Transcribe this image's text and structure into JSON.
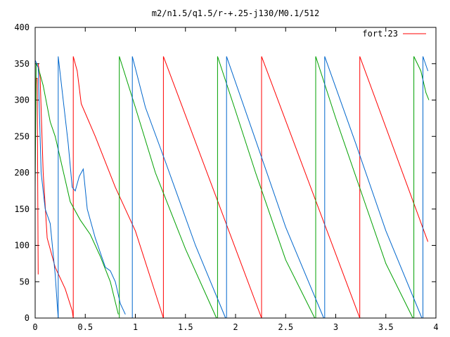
{
  "chart_data": {
    "type": "line",
    "title": "m2/n1.5/q1.5/r-+.25-j130/M0.1/512",
    "xlabel": "",
    "ylabel": "",
    "xlim": [
      0,
      4
    ],
    "ylim": [
      0,
      400
    ],
    "x_ticks": [
      "0",
      "0.5",
      "1",
      "1.5",
      "2",
      "2.5",
      "3",
      "3.5",
      "4"
    ],
    "y_ticks": [
      "0",
      "50",
      "100",
      "150",
      "200",
      "250",
      "300",
      "350",
      "400"
    ],
    "grid": false,
    "legend_position": "top-right",
    "legend_entries": [
      "fort.23"
    ],
    "series": [
      {
        "name": "fort.23",
        "color": "#ff0000",
        "segments": [
          [
            [
              0.0,
              300
            ],
            [
              0.01,
              330
            ],
            [
              0.02,
              330
            ],
            [
              0.03,
              60
            ]
          ],
          [
            [
              0.03,
              350
            ],
            [
              0.05,
              330
            ],
            [
              0.08,
              200
            ],
            [
              0.12,
              110
            ],
            [
              0.2,
              70
            ],
            [
              0.3,
              40
            ],
            [
              0.37,
              10
            ],
            [
              0.38,
              0
            ]
          ],
          [
            [
              0.38,
              0
            ],
            [
              0.38,
              360
            ],
            [
              0.42,
              340
            ],
            [
              0.46,
              295
            ],
            [
              0.6,
              250
            ],
            [
              0.8,
              180
            ],
            [
              1.0,
              120
            ],
            [
              1.28,
              0
            ]
          ],
          [
            [
              1.28,
              0
            ],
            [
              1.28,
              360
            ],
            [
              2.26,
              0
            ]
          ],
          [
            [
              2.26,
              0
            ],
            [
              2.26,
              360
            ],
            [
              3.24,
              0
            ]
          ],
          [
            [
              3.24,
              0
            ],
            [
              3.24,
              360
            ],
            [
              3.92,
              105
            ]
          ]
        ]
      },
      {
        "color": "#00a000",
        "segments": [
          [
            [
              0.0,
              180
            ],
            [
              0.01,
              350
            ],
            [
              0.03,
              345
            ],
            [
              0.08,
              320
            ],
            [
              0.15,
              270
            ],
            [
              0.2,
              250
            ],
            [
              0.3,
              190
            ],
            [
              0.35,
              160
            ],
            [
              0.45,
              135
            ],
            [
              0.55,
              115
            ],
            [
              0.65,
              85
            ],
            [
              0.75,
              50
            ],
            [
              0.83,
              5
            ]
          ],
          [
            [
              0.84,
              0
            ],
            [
              0.84,
              360
            ],
            [
              1.0,
              290
            ],
            [
              1.2,
              200
            ],
            [
              1.5,
              95
            ],
            [
              1.81,
              0
            ]
          ],
          [
            [
              1.82,
              0
            ],
            [
              1.82,
              360
            ],
            [
              2.0,
              285
            ],
            [
              2.2,
              200
            ],
            [
              2.5,
              80
            ],
            [
              2.79,
              0
            ]
          ],
          [
            [
              2.8,
              0
            ],
            [
              2.8,
              360
            ],
            [
              3.0,
              275
            ],
            [
              3.2,
              195
            ],
            [
              3.5,
              75
            ],
            [
              3.77,
              0
            ]
          ],
          [
            [
              3.78,
              0
            ],
            [
              3.78,
              360
            ],
            [
              3.85,
              340
            ],
            [
              3.9,
              310
            ],
            [
              3.93,
              300
            ]
          ]
        ]
      },
      {
        "color": "#0066cc",
        "segments": [
          [
            [
              0.0,
              355
            ],
            [
              0.03,
              345
            ],
            [
              0.06,
              200
            ],
            [
              0.1,
              150
            ],
            [
              0.15,
              130
            ],
            [
              0.2,
              60
            ],
            [
              0.22,
              20
            ],
            [
              0.23,
              0
            ]
          ],
          [
            [
              0.23,
              0
            ],
            [
              0.23,
              360
            ],
            [
              0.28,
              300
            ],
            [
              0.33,
              240
            ],
            [
              0.37,
              180
            ],
            [
              0.4,
              175
            ],
            [
              0.44,
              195
            ],
            [
              0.48,
              205
            ],
            [
              0.52,
              150
            ],
            [
              0.6,
              110
            ],
            [
              0.7,
              70
            ],
            [
              0.75,
              65
            ],
            [
              0.8,
              50
            ],
            [
              0.85,
              20
            ],
            [
              0.9,
              5
            ]
          ],
          [
            [
              0.97,
              0
            ],
            [
              0.97,
              360
            ],
            [
              1.1,
              290
            ],
            [
              1.3,
              215
            ],
            [
              1.6,
              100
            ],
            [
              1.9,
              0
            ]
          ],
          [
            [
              1.91,
              0
            ],
            [
              1.91,
              360
            ],
            [
              2.2,
              245
            ],
            [
              2.5,
              125
            ],
            [
              2.88,
              0
            ]
          ],
          [
            [
              2.89,
              0
            ],
            [
              2.89,
              360
            ],
            [
              3.2,
              240
            ],
            [
              3.5,
              120
            ],
            [
              3.86,
              0
            ]
          ],
          [
            [
              3.87,
              0
            ],
            [
              3.87,
              360
            ],
            [
              3.92,
              340
            ]
          ]
        ]
      }
    ]
  }
}
